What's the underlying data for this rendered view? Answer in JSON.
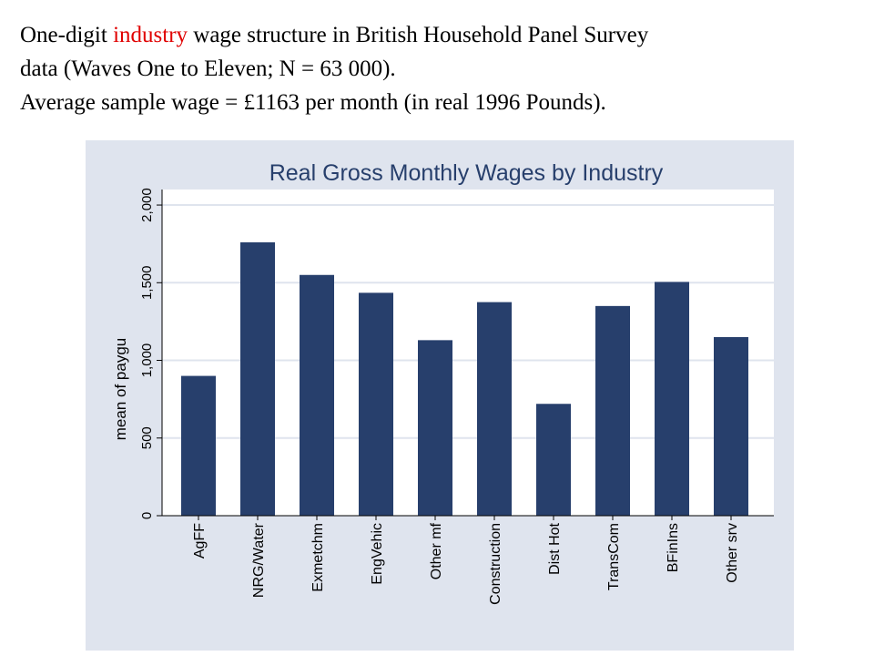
{
  "slide": {
    "line1_pre": "One-digit ",
    "line1_highlight": "industry",
    "line1_post": " wage structure in British Household Panel Survey",
    "line2": "data (Waves One to Eleven; N = 63 000).",
    "line3": "Average sample wage  = £1163 per month (in real 1996 Pounds).",
    "highlight_color": "#e00000"
  },
  "chart_data": {
    "type": "bar",
    "title": "Real Gross Monthly Wages by Industry",
    "xlabel": "",
    "ylabel": "mean of paygu",
    "categories": [
      "AgFF",
      "NRG/Water",
      "Exmetchm",
      "EngVehic",
      "Other mf",
      "Construction",
      "Dist Hot",
      "TransCom",
      "BFinIns",
      "Other srv"
    ],
    "values": [
      900,
      1760,
      1550,
      1435,
      1130,
      1375,
      720,
      1350,
      1505,
      1150
    ],
    "ylim": [
      0,
      2100
    ],
    "yticks": [
      0,
      500,
      1000,
      1500,
      2000
    ],
    "ytick_labels": [
      "0",
      "500",
      "1,000",
      "1,500",
      "2,000"
    ],
    "grid": true,
    "legend": "none",
    "bar_color": "#273f6c",
    "panel_color": "#dfe4ee",
    "plot_color": "#ffffff",
    "grid_color": "#dfe4ee",
    "title_color": "#273f6c"
  }
}
